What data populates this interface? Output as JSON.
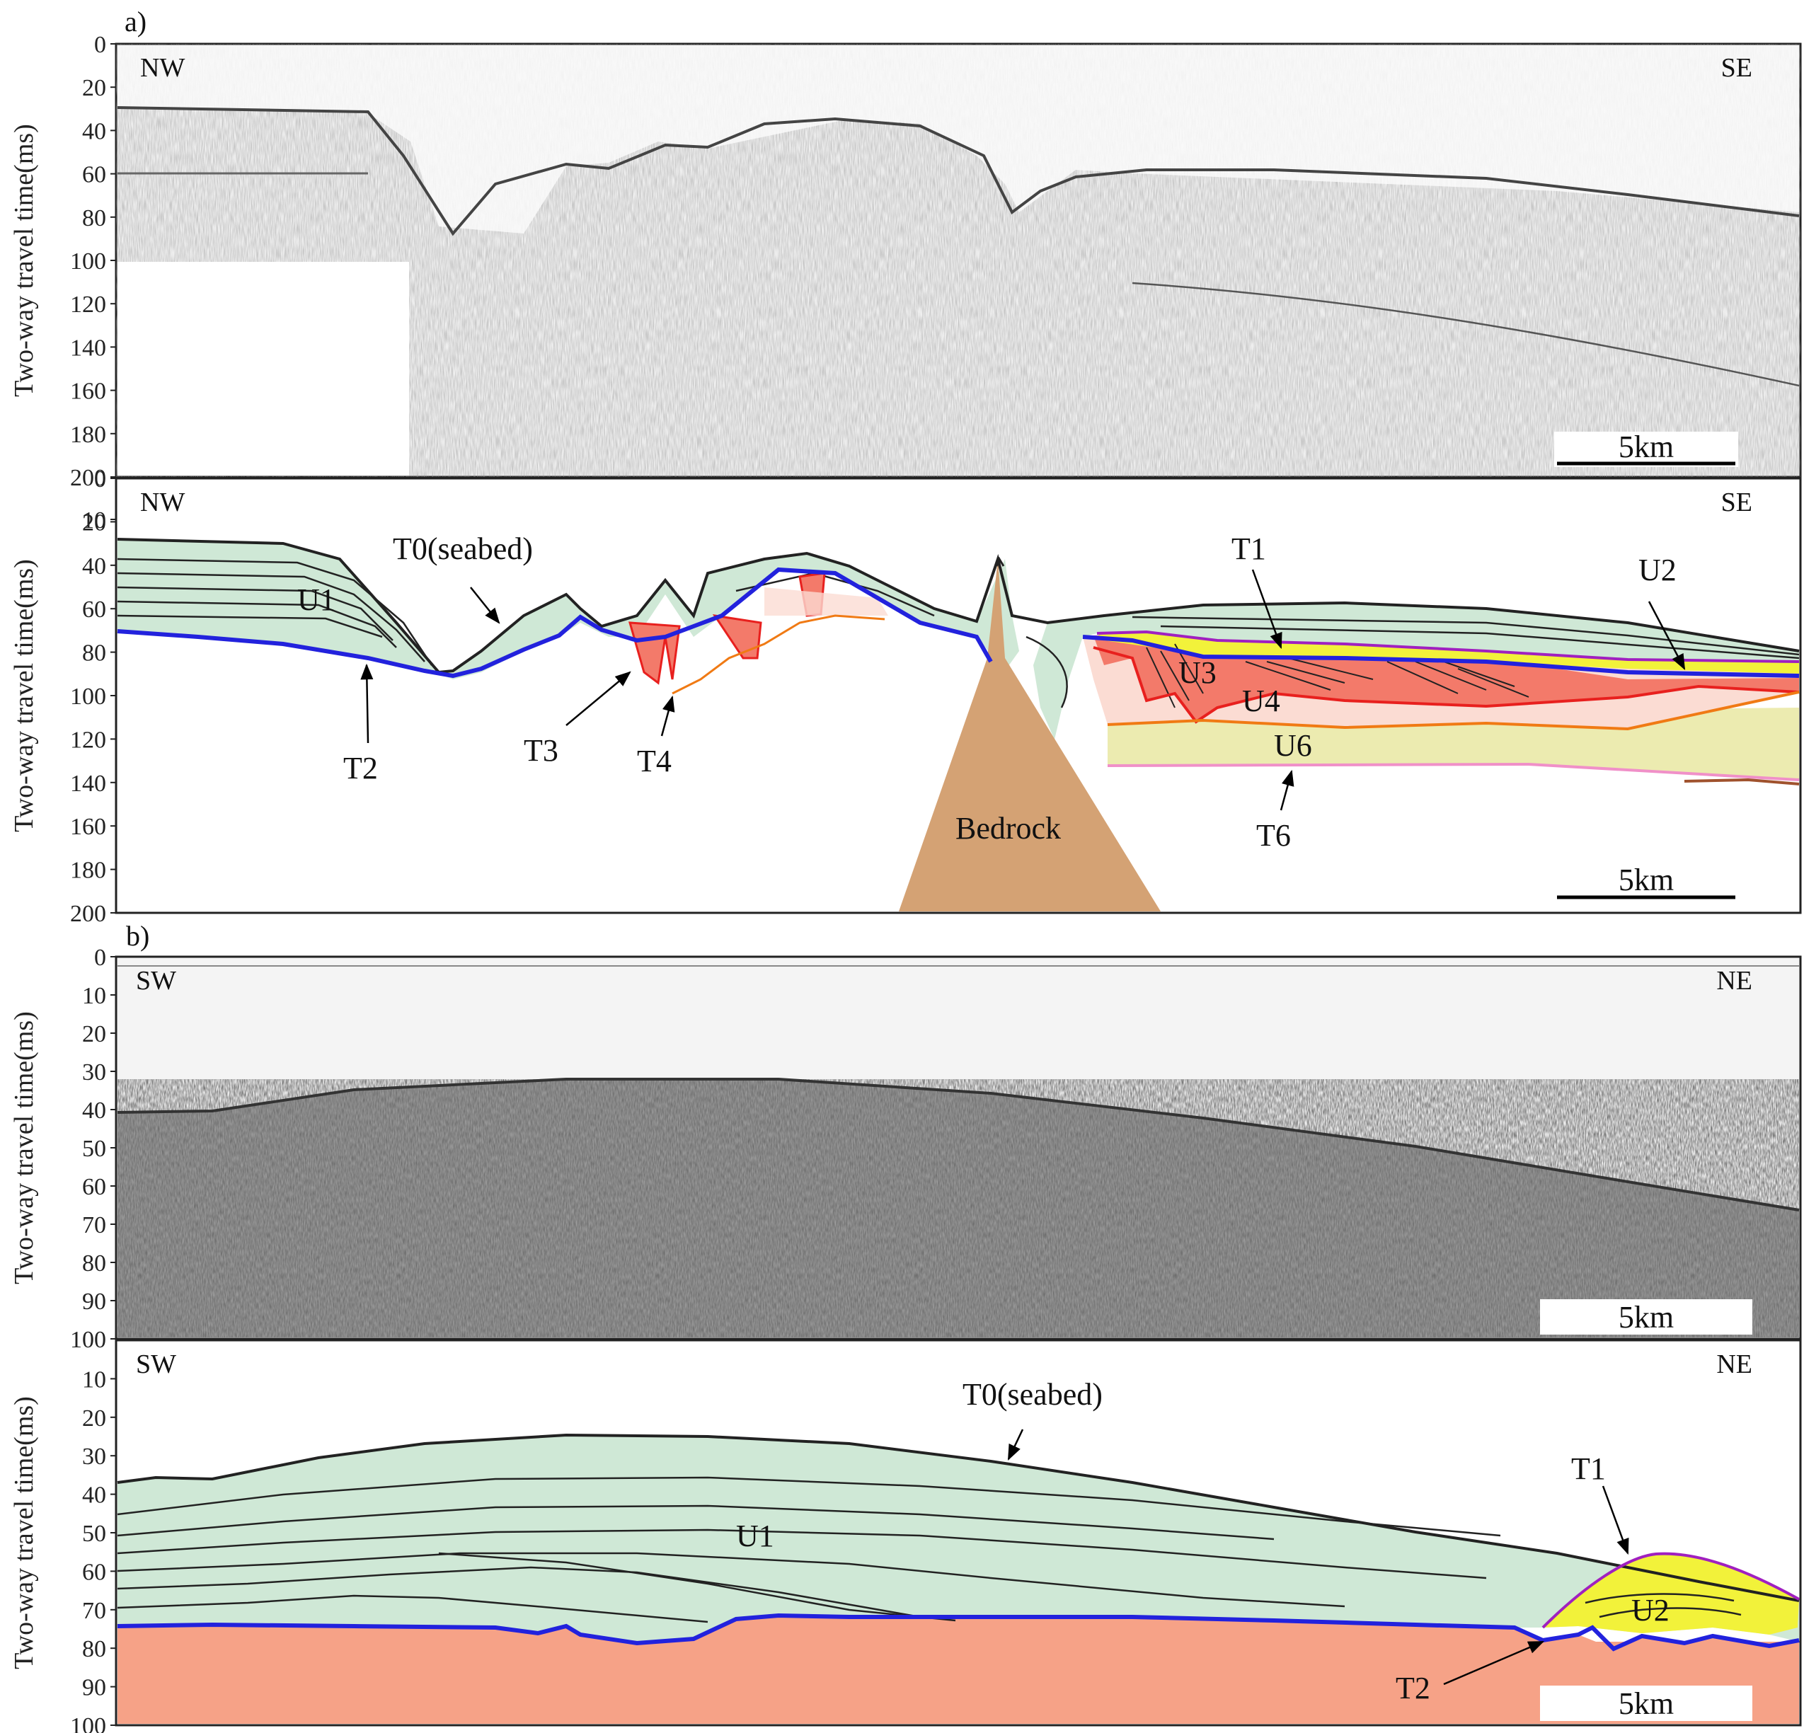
{
  "figure": {
    "panel_a_label": "a)",
    "panel_b_label": "b)",
    "y_axis_label": "Two-way travel time(ms)",
    "scale_bar": "5km",
    "panels": [
      {
        "id": "a1",
        "left_dir": "NW",
        "right_dir": "SE",
        "ticks": [
          "0",
          "20",
          "40",
          "60",
          "80",
          "100",
          "120",
          "140",
          "160",
          "180",
          "200"
        ]
      },
      {
        "id": "a2",
        "left_dir": "NW",
        "right_dir": "SE",
        "ticks": [
          "0",
          "10",
          "20",
          "40",
          "60",
          "80",
          "100",
          "120",
          "140",
          "160",
          "180",
          "200"
        ]
      },
      {
        "id": "b1",
        "left_dir": "SW",
        "right_dir": "NE",
        "ticks": [
          "0",
          "10",
          "20",
          "30",
          "40",
          "50",
          "60",
          "70",
          "80",
          "90",
          "100"
        ]
      },
      {
        "id": "b2",
        "left_dir": "SW",
        "right_dir": "NE",
        "ticks": [
          "10",
          "20",
          "30",
          "40",
          "50",
          "60",
          "70",
          "80",
          "90",
          "100"
        ]
      }
    ],
    "a_labels": {
      "t0": "T0(seabed)",
      "u1": "U1",
      "t2": "T2",
      "t3": "T3",
      "t4": "T4",
      "bedrock": "Bedrock",
      "t1": "T1",
      "u2": "U2",
      "u3": "U3",
      "u4": "U4",
      "u6": "U6",
      "t6": "T6"
    },
    "b_labels": {
      "t0": "T0(seabed)",
      "u1": "U1",
      "t1": "T1",
      "u2": "U2",
      "t2": "T2"
    },
    "colors": {
      "u1_fill": "#cfe8d6",
      "u2_fill": "#f2f23a",
      "u3_fill": "#f37a6a",
      "u4_fill": "#fbdcd3",
      "u6_fill": "#ecebb0",
      "bedrock": "#d4a274",
      "basement_b": "#f6a287",
      "t2_line": "#2222dd",
      "t1_line": "#a020c0",
      "t4_line": "#f07a14",
      "t6_line": "#f090c8",
      "red_line": "#e8201e"
    }
  }
}
